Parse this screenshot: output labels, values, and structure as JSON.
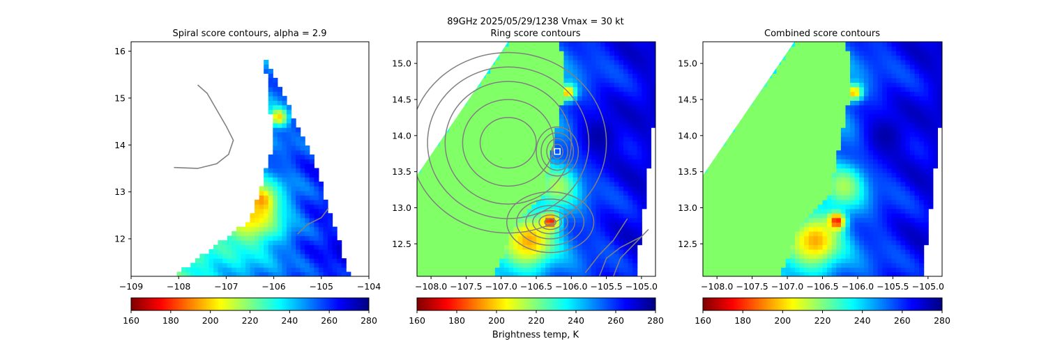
{
  "figure": {
    "suptitle_line1": "89GHz  2025/05/29/1238    Vmax = 30 kt",
    "colorbar_label": "Brightness temp, K"
  },
  "colors": {
    "land_fill": "#80ff66",
    "contour": "#808080",
    "center_marker": "#ffffff"
  },
  "chart_data": [
    {
      "type": "heatmap",
      "title": "Spiral score contours, alpha =  2.9",
      "colormap": "jet",
      "xlim": [
        -109.0,
        -104.0
      ],
      "ylim": [
        11.2,
        16.2
      ],
      "xticks": [
        -109,
        -108,
        -107,
        -106,
        -105,
        -104
      ],
      "yticks": [
        12,
        13,
        14,
        15,
        16
      ],
      "colorbar": {
        "min": 160,
        "max": 280,
        "ticks": [
          160,
          180,
          200,
          220,
          240,
          260,
          280
        ]
      },
      "swath_polygon": [
        [
          -108.1,
          11.2
        ],
        [
          -106.5,
          12.4
        ],
        [
          -106.0,
          14.0
        ],
        [
          -106.2,
          15.9
        ],
        [
          -105.2,
          13.8
        ],
        [
          -104.4,
          11.2
        ]
      ],
      "hot_spots": [
        {
          "lon": -106.3,
          "lat": 12.8,
          "tb": 165,
          "radius": 0.25
        },
        {
          "lon": -106.5,
          "lat": 12.55,
          "tb": 200,
          "radius": 0.7
        },
        {
          "lon": -105.9,
          "lat": 14.6,
          "tb": 200,
          "radius": 0.2
        },
        {
          "lon": -106.0,
          "lat": 13.7,
          "tb": 255,
          "radius": 0.3
        }
      ],
      "contour_lines": [
        [
          [
            -107.6,
            15.28
          ],
          [
            -107.4,
            15.1
          ],
          [
            -107.2,
            14.75
          ],
          [
            -107.0,
            14.4
          ],
          [
            -106.85,
            14.1
          ],
          [
            -106.95,
            13.8
          ],
          [
            -107.2,
            13.6
          ],
          [
            -107.6,
            13.5
          ],
          [
            -108.1,
            13.52
          ]
        ],
        [
          [
            -105.5,
            12.1
          ],
          [
            -105.3,
            12.3
          ],
          [
            -105.0,
            12.45
          ],
          [
            -104.85,
            12.65
          ]
        ]
      ]
    },
    {
      "type": "heatmap",
      "title": "Ring score contours",
      "colormap": "jet",
      "xlim": [
        -108.2,
        -104.8
      ],
      "ylim": [
        12.05,
        15.3
      ],
      "xticks": [
        -108.0,
        -107.5,
        -107.0,
        -106.5,
        -106.0,
        -105.5,
        -105.0
      ],
      "yticks": [
        12.5,
        13.0,
        13.5,
        14.0,
        14.5,
        15.0
      ],
      "colorbar": {
        "min": 160,
        "max": 280,
        "ticks": [
          160,
          180,
          200,
          220,
          240,
          260,
          280
        ]
      },
      "land_polygon": [
        [
          -108.2,
          12.05
        ],
        [
          -108.2,
          13.45
        ],
        [
          -106.9,
          15.3
        ],
        [
          -106.15,
          15.3
        ],
        [
          -106.1,
          14.6
        ],
        [
          -106.4,
          13.2
        ],
        [
          -106.8,
          12.8
        ],
        [
          -107.1,
          12.05
        ]
      ],
      "hot_spots": [
        {
          "lon": -106.3,
          "lat": 12.82,
          "tb": 165,
          "radius": 0.12
        },
        {
          "lon": -106.6,
          "lat": 12.55,
          "tb": 195,
          "radius": 0.35
        },
        {
          "lon": -106.05,
          "lat": 14.6,
          "tb": 195,
          "radius": 0.12
        },
        {
          "lon": -105.6,
          "lat": 14.0,
          "tb": 275,
          "radius": 0.35
        },
        {
          "lon": -106.2,
          "lat": 13.3,
          "tb": 215,
          "radius": 0.3
        }
      ],
      "center_marker": {
        "lon": -106.2,
        "lat": 13.78
      },
      "contour_rings": [
        {
          "lon": -106.3,
          "lat": 12.8,
          "rx": [
            0.08,
            0.16,
            0.25,
            0.35,
            0.48,
            0.62
          ],
          "ry": [
            0.05,
            0.1,
            0.16,
            0.23,
            0.32,
            0.42
          ]
        },
        {
          "lon": -106.2,
          "lat": 13.78,
          "rx": [
            0.08,
            0.15,
            0.23,
            0.3
          ],
          "ry": [
            0.1,
            0.18,
            0.26,
            0.34
          ]
        },
        {
          "lon": -106.9,
          "lat": 13.9,
          "rx": [
            0.4,
            0.65,
            0.9,
            1.15,
            1.4
          ],
          "ry": [
            0.35,
            0.6,
            0.85,
            1.05,
            1.25
          ]
        }
      ],
      "contour_lines": [
        [
          [
            -105.4,
            12.05
          ],
          [
            -105.3,
            12.3
          ],
          [
            -105.1,
            12.5
          ],
          [
            -104.9,
            12.7
          ]
        ],
        [
          [
            -105.6,
            12.05
          ],
          [
            -105.5,
            12.3
          ],
          [
            -105.3,
            12.45
          ],
          [
            -105.0,
            12.6
          ]
        ],
        [
          [
            -105.8,
            12.1
          ],
          [
            -105.6,
            12.35
          ],
          [
            -105.4,
            12.55
          ],
          [
            -105.2,
            12.85
          ]
        ]
      ]
    },
    {
      "type": "heatmap",
      "title": "Combined score contours",
      "colormap": "jet",
      "xlim": [
        -108.2,
        -104.8
      ],
      "ylim": [
        12.05,
        15.3
      ],
      "xticks": [
        -108.0,
        -107.5,
        -107.0,
        -106.5,
        -106.0,
        -105.5,
        -105.0
      ],
      "yticks": [
        12.5,
        13.0,
        13.5,
        14.0,
        14.5,
        15.0
      ],
      "colorbar": {
        "min": 160,
        "max": 280,
        "ticks": [
          160,
          180,
          200,
          220,
          240,
          260,
          280
        ]
      },
      "land_polygon": [
        [
          -108.2,
          12.05
        ],
        [
          -108.2,
          13.45
        ],
        [
          -106.9,
          15.3
        ],
        [
          -106.15,
          15.3
        ],
        [
          -106.1,
          14.6
        ],
        [
          -106.4,
          13.2
        ],
        [
          -106.8,
          12.8
        ],
        [
          -107.1,
          12.05
        ]
      ],
      "hot_spots": [
        {
          "lon": -106.3,
          "lat": 12.82,
          "tb": 165,
          "radius": 0.12
        },
        {
          "lon": -106.6,
          "lat": 12.55,
          "tb": 195,
          "radius": 0.35
        },
        {
          "lon": -106.05,
          "lat": 14.6,
          "tb": 195,
          "radius": 0.12
        },
        {
          "lon": -105.6,
          "lat": 14.0,
          "tb": 275,
          "radius": 0.35
        },
        {
          "lon": -106.2,
          "lat": 13.3,
          "tb": 215,
          "radius": 0.3
        }
      ]
    }
  ]
}
